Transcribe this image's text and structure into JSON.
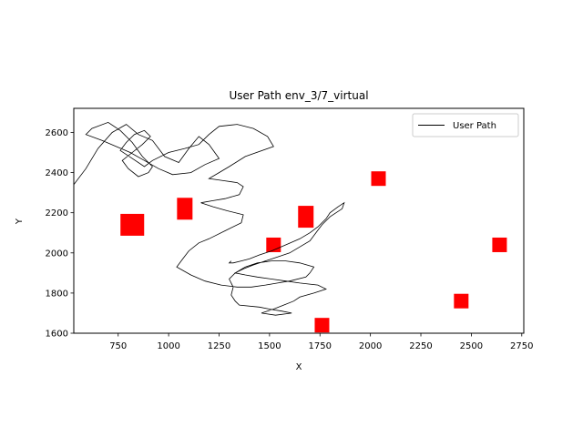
{
  "chart_data": {
    "type": "line",
    "title": "User Path env_3/7_virtual",
    "xlabel": "X",
    "ylabel": "Y",
    "xlim": [
      530,
      2760
    ],
    "ylim": [
      1600,
      2720
    ],
    "x_ticks": [
      750,
      1000,
      1250,
      1500,
      1750,
      2000,
      2250,
      2500,
      2750
    ],
    "y_ticks": [
      1600,
      1800,
      2000,
      2200,
      2400,
      2600
    ],
    "grid": false,
    "legend": {
      "placement": "top-right",
      "entries": [
        "User Path"
      ]
    },
    "series": [
      {
        "name": "User Path",
        "color": "#000000",
        "x": [
          530,
          590,
          650,
          720,
          790,
          850,
          920,
          980,
          1050,
          1100,
          1150,
          1200,
          1250,
          1180,
          1110,
          1020,
          950,
          880,
          810,
          740,
          670,
          590,
          620,
          700,
          760,
          820,
          870,
          920,
          900,
          850,
          800,
          770,
          820,
          870,
          910,
          880,
          830,
          790,
          760,
          820,
          880,
          920,
          1000,
          1080,
          1150,
          1200,
          1250,
          1340,
          1420,
          1490,
          1520,
          1380,
          1300,
          1250,
          1200,
          1270,
          1340,
          1370,
          1350,
          1280,
          1220,
          1160,
          1220,
          1290,
          1370,
          1360,
          1280,
          1200,
          1150,
          1100,
          1070,
          1040,
          1110,
          1180,
          1260,
          1340,
          1410,
          1480,
          1540,
          1600,
          1680,
          1700,
          1720,
          1650,
          1580,
          1510,
          1440,
          1380,
          1330,
          1300,
          1320,
          1310,
          1330,
          1350,
          1450,
          1500,
          1560,
          1610,
          1530,
          1460,
          1520,
          1570,
          1620,
          1650,
          1720,
          1780,
          1740,
          1650,
          1580,
          1510,
          1440,
          1380,
          1330,
          1370,
          1420,
          1480,
          1540,
          1600,
          1650,
          1700,
          1730,
          1760,
          1800,
          1860,
          1870,
          1840,
          1800,
          1780,
          1740,
          1700,
          1650,
          1580,
          1510,
          1450,
          1400,
          1360,
          1320,
          1300,
          1310
        ],
        "y": [
          2340,
          2420,
          2520,
          2600,
          2640,
          2590,
          2560,
          2480,
          2450,
          2520,
          2580,
          2540,
          2470,
          2440,
          2400,
          2390,
          2420,
          2460,
          2500,
          2530,
          2560,
          2590,
          2620,
          2650,
          2610,
          2550,
          2480,
          2430,
          2400,
          2380,
          2420,
          2460,
          2500,
          2540,
          2580,
          2610,
          2590,
          2550,
          2510,
          2470,
          2430,
          2460,
          2500,
          2520,
          2540,
          2590,
          2630,
          2640,
          2620,
          2580,
          2530,
          2480,
          2430,
          2400,
          2370,
          2360,
          2350,
          2330,
          2290,
          2270,
          2260,
          2250,
          2230,
          2210,
          2190,
          2150,
          2110,
          2070,
          2050,
          2010,
          1970,
          1930,
          1890,
          1860,
          1840,
          1830,
          1830,
          1840,
          1850,
          1860,
          1880,
          1900,
          1930,
          1950,
          1960,
          1960,
          1950,
          1930,
          1900,
          1870,
          1830,
          1790,
          1760,
          1740,
          1730,
          1720,
          1710,
          1700,
          1690,
          1700,
          1720,
          1740,
          1760,
          1780,
          1800,
          1820,
          1840,
          1850,
          1860,
          1870,
          1880,
          1890,
          1900,
          1920,
          1940,
          1960,
          1980,
          2000,
          2030,
          2060,
          2100,
          2140,
          2180,
          2220,
          2250,
          2230,
          2200,
          2170,
          2130,
          2100,
          2070,
          2040,
          2010,
          1990,
          1970,
          1960,
          1950,
          1950,
          1960
        ]
      }
    ],
    "markers": {
      "color": "#ff0000",
      "points": [
        {
          "x": 820,
          "y": 2140,
          "size": "large"
        },
        {
          "x": 1080,
          "y": 2220,
          "size": "medium-tall"
        },
        {
          "x": 1520,
          "y": 2040,
          "size": "small"
        },
        {
          "x": 1680,
          "y": 2180,
          "size": "medium-tall"
        },
        {
          "x": 2040,
          "y": 2370,
          "size": "small"
        },
        {
          "x": 1760,
          "y": 1640,
          "size": "small"
        },
        {
          "x": 2450,
          "y": 1760,
          "size": "small"
        },
        {
          "x": 2640,
          "y": 2040,
          "size": "small"
        }
      ]
    }
  }
}
